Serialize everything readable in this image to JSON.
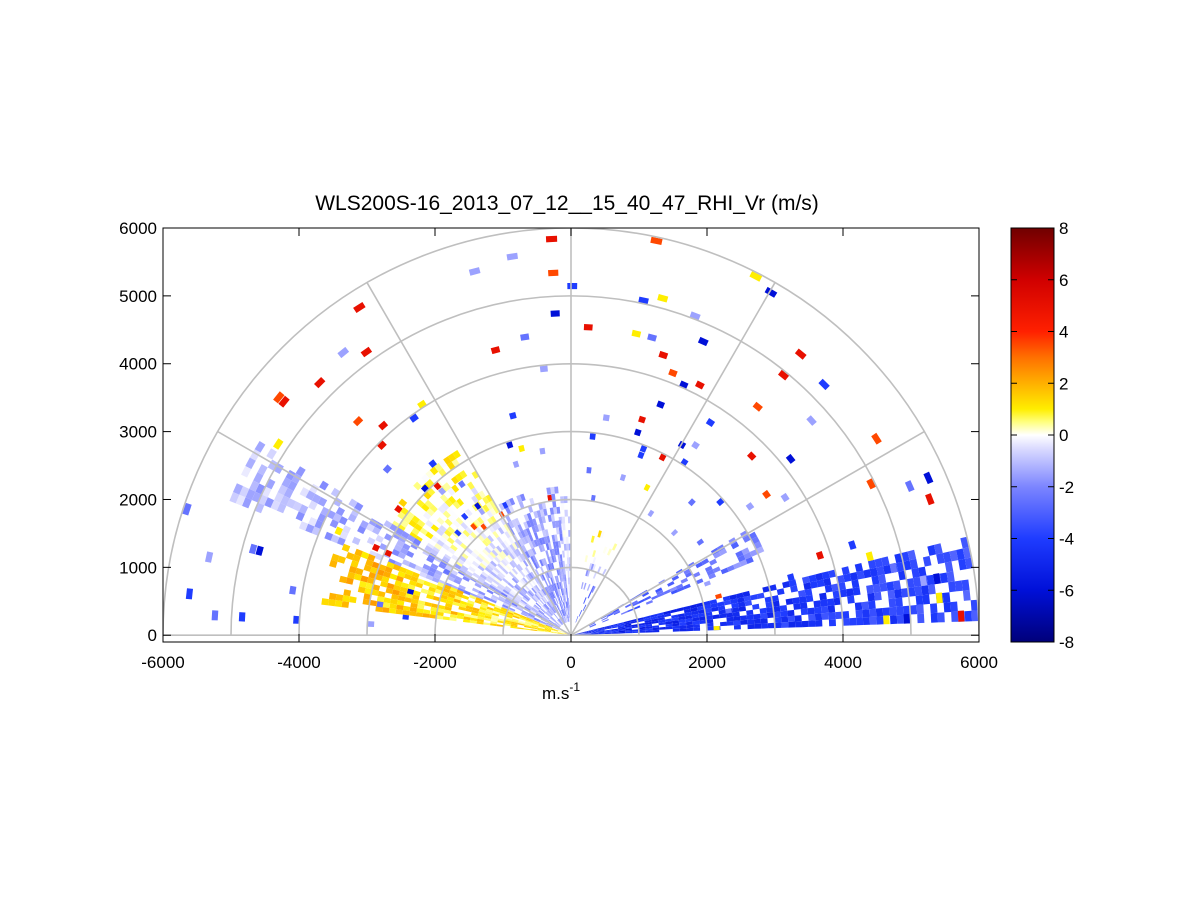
{
  "chart_data": {
    "type": "heatmap",
    "title": "WLS200S-16_2013_07_12__15_40_47_RHI_Vr (m/s)",
    "xlabel": "m.s",
    "xlabel_sup": "-1",
    "ylabel": "",
    "xlim": [
      -6000,
      6000
    ],
    "ylim": [
      -100,
      6000
    ],
    "xticks": [
      -6000,
      -4000,
      -2000,
      0,
      2000,
      4000,
      6000
    ],
    "xtick_labels": [
      "-6000",
      "-4000",
      "-2000",
      "0",
      "2000",
      "4000",
      "6000"
    ],
    "yticks": [
      0,
      1000,
      2000,
      3000,
      4000,
      5000,
      6000
    ],
    "ytick_labels": [
      "0",
      "1000",
      "2000",
      "3000",
      "4000",
      "5000",
      "6000"
    ],
    "polar_grid": {
      "radii": [
        1000,
        2000,
        3000,
        4000,
        5000,
        6000
      ],
      "angles_deg": [
        0,
        30,
        60,
        90,
        120,
        150,
        180
      ]
    },
    "colorbar": {
      "clim": [
        -8,
        8
      ],
      "ticks": [
        -8,
        -6,
        -4,
        -2,
        0,
        2,
        4,
        6,
        8
      ],
      "tick_labels": [
        "-8",
        "-6",
        "-4",
        "-2",
        "0",
        "2",
        "4",
        "6",
        "8"
      ],
      "colormap": [
        {
          "v": -8,
          "color": "#00007a"
        },
        {
          "v": -6,
          "color": "#0010d8"
        },
        {
          "v": -4,
          "color": "#1f3cff"
        },
        {
          "v": -2,
          "color": "#7c85ff"
        },
        {
          "v": -0.5,
          "color": "#dcdcff"
        },
        {
          "v": 0,
          "color": "#ffffff"
        },
        {
          "v": 0.5,
          "color": "#ffff80"
        },
        {
          "v": 1,
          "color": "#ffee00"
        },
        {
          "v": 2,
          "color": "#ffb000"
        },
        {
          "v": 3,
          "color": "#ff7000"
        },
        {
          "v": 4,
          "color": "#ff2000"
        },
        {
          "v": 6,
          "color": "#d00000"
        },
        {
          "v": 8,
          "color": "#700000"
        }
      ]
    },
    "sectors": [
      {
        "az_from": 2,
        "az_to": 14,
        "r_from": 0,
        "r_to": 6000,
        "v_near": -5.0,
        "v_far": -3.5,
        "fill": 0.92
      },
      {
        "az_from": 22,
        "az_to": 30,
        "r_from": 300,
        "r_to": 3100,
        "v_near": -3.0,
        "v_far": -2.0,
        "fill": 0.6
      },
      {
        "az_from": 60,
        "az_to": 80,
        "r_from": 200,
        "r_to": 1600,
        "v_near": -3.5,
        "v_far": 1.0,
        "fill": 0.12
      },
      {
        "az_from": 90,
        "az_to": 95,
        "r_from": 150,
        "r_to": 2000,
        "v_near": -1.0,
        "v_far": -0.6,
        "fill": 0.85
      },
      {
        "az_from": 95,
        "az_to": 120,
        "r_from": 200,
        "r_to": 2200,
        "v_near": -1.8,
        "v_far": -1.2,
        "fill": 0.8
      },
      {
        "az_from": 120,
        "az_to": 148,
        "r_from": 200,
        "r_to": 3200,
        "v_near": -1.5,
        "v_far": 0.8,
        "fill": 0.8
      },
      {
        "az_from": 148,
        "az_to": 158,
        "r_from": 200,
        "r_to": 5400,
        "v_near": -1.6,
        "v_far": -1.0,
        "fill": 0.7
      },
      {
        "az_from": 158,
        "az_to": 172,
        "r_from": 0,
        "r_to": 3700,
        "v_near": 0.8,
        "v_far": 1.8,
        "fill": 0.95
      }
    ],
    "sparse": {
      "r_from": 2000,
      "r_to": 6000,
      "density": 0.045,
      "values": [
        -2.5,
        -4.0,
        -1.5,
        -6.0,
        1.0,
        3.5,
        5.0
      ]
    }
  }
}
